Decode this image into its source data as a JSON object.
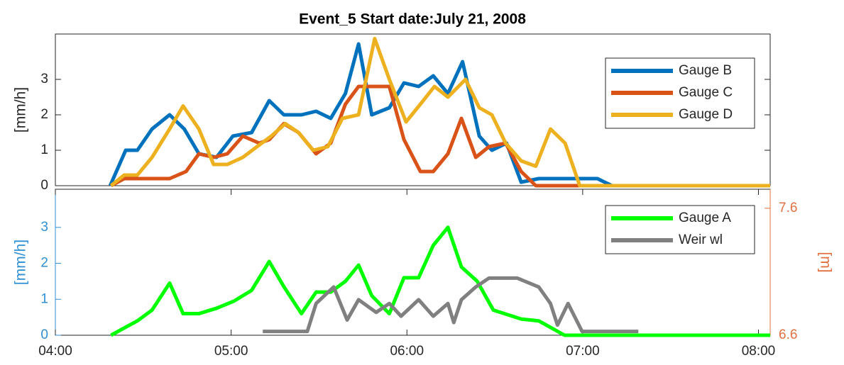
{
  "chart_data": [
    {
      "type": "line",
      "title": "Event_5 Start date:July 21, 2008",
      "ylabel": "[mm/h]",
      "xlim": [
        240,
        484
      ],
      "ylim": [
        0,
        4.28
      ],
      "yticks": [
        0,
        1,
        2,
        3
      ],
      "legend": "upper right",
      "series": [
        {
          "name": "Gauge B",
          "color": "#0072bd",
          "x": [
            258.7,
            264,
            268,
            273,
            279,
            284,
            289,
            295,
            300.6,
            307,
            313,
            318,
            324,
            329,
            334,
            339,
            343.5,
            348,
            354,
            359,
            364,
            369,
            374,
            379,
            384.7,
            389,
            394,
            399,
            405,
            415,
            425,
            430,
            484
          ],
          "values": [
            0,
            1.0,
            1.0,
            1.6,
            2.0,
            1.6,
            0.9,
            0.8,
            1.4,
            1.5,
            2.4,
            2.0,
            2.0,
            2.1,
            1.9,
            2.6,
            4.0,
            2.0,
            2.2,
            2.9,
            2.8,
            3.1,
            2.6,
            3.5,
            1.4,
            1.0,
            1.2,
            0.1,
            0.2,
            0.2,
            0.2,
            0,
            0
          ]
        },
        {
          "name": "Gauge C",
          "color": "#d95319",
          "x": [
            259,
            263.5,
            268,
            273,
            279,
            284.6,
            289,
            294,
            298.7,
            304,
            309.6,
            313,
            318,
            323,
            329,
            334,
            339,
            343.5,
            348,
            354,
            359,
            364.6,
            369,
            374,
            378.6,
            383.5,
            388,
            393.7,
            399,
            404,
            484
          ],
          "values": [
            0,
            0.2,
            0.2,
            0.2,
            0.2,
            0.4,
            0.9,
            0.8,
            0.9,
            1.4,
            1.2,
            1.3,
            1.75,
            1.5,
            0.9,
            1.2,
            2.3,
            2.8,
            2.8,
            2.8,
            1.3,
            0.4,
            0.4,
            0.9,
            1.9,
            0.8,
            1.1,
            1.2,
            0.4,
            0,
            0
          ]
        },
        {
          "name": "Gauge D",
          "color": "#edb120",
          "x": [
            259,
            263.5,
            268,
            273,
            279,
            283.6,
            289,
            294,
            298.7,
            304,
            308.8,
            313.7,
            318.5,
            323,
            328,
            333,
            338,
            343.5,
            349,
            354,
            359.7,
            364.6,
            369.4,
            374,
            380,
            384.7,
            389,
            393.7,
            399,
            404,
            409,
            414,
            419,
            484
          ],
          "values": [
            0,
            0.3,
            0.3,
            0.8,
            1.6,
            2.25,
            1.6,
            0.6,
            0.6,
            0.8,
            1.1,
            1.4,
            1.75,
            1.5,
            1.0,
            1.1,
            1.9,
            2.0,
            4.15,
            3.0,
            1.8,
            2.3,
            2.8,
            2.5,
            3.0,
            2.2,
            2.0,
            1.2,
            0.7,
            0.55,
            1.6,
            1.2,
            0,
            0
          ]
        }
      ]
    },
    {
      "type": "line",
      "ylabel": "[mm/h]",
      "y2label": "[m]",
      "xlim": [
        240,
        484
      ],
      "ylim": [
        0,
        4.06
      ],
      "yticks": [
        0,
        1,
        2,
        3
      ],
      "y2lim": [
        6.6,
        7.75
      ],
      "y2ticks": [
        6.6,
        7.6
      ],
      "xticks": [
        {
          "value": 240,
          "label": "04:00"
        },
        {
          "value": 300,
          "label": "05:00"
        },
        {
          "value": 360,
          "label": "06:00"
        },
        {
          "value": 420,
          "label": "07:00"
        },
        {
          "value": 480,
          "label": "08:00"
        }
      ],
      "ycolor": "#2f8fd3",
      "y2color": "#e0703f",
      "legend": "upper right",
      "series": [
        {
          "name": "Gauge A",
          "color": "#00ff00",
          "x": [
            259,
            263.5,
            268,
            273,
            279,
            283.6,
            289,
            295,
            301,
            307,
            313,
            318,
            324,
            329,
            334,
            339,
            343.5,
            348,
            354,
            359,
            364,
            369,
            374,
            378.6,
            384,
            389.5,
            399,
            405,
            413.8,
            484
          ],
          "values": [
            0,
            0.2,
            0.4,
            0.7,
            1.45,
            0.6,
            0.6,
            0.75,
            0.95,
            1.25,
            2.05,
            1.35,
            0.6,
            1.2,
            1.2,
            1.5,
            1.95,
            1.1,
            0.6,
            1.6,
            1.6,
            2.5,
            3.0,
            1.9,
            1.5,
            0.7,
            0.45,
            0.4,
            0,
            0
          ]
        },
        {
          "name": "Weir wl",
          "color": "#808080",
          "axis": "y2",
          "x": [
            310.8,
            326,
            329,
            335,
            339.6,
            343.5,
            349.5,
            354,
            358,
            364,
            369,
            374,
            376,
            378.6,
            383.5,
            388,
            397.7,
            405,
            409,
            411.4,
            415,
            419.8,
            439
          ],
          "values": [
            6.63,
            6.63,
            6.85,
            6.98,
            6.72,
            6.88,
            6.78,
            6.85,
            6.75,
            6.88,
            6.75,
            6.85,
            6.7,
            6.88,
            6.98,
            7.05,
            7.05,
            6.98,
            6.85,
            6.68,
            6.85,
            6.63,
            6.63
          ]
        }
      ]
    }
  ]
}
